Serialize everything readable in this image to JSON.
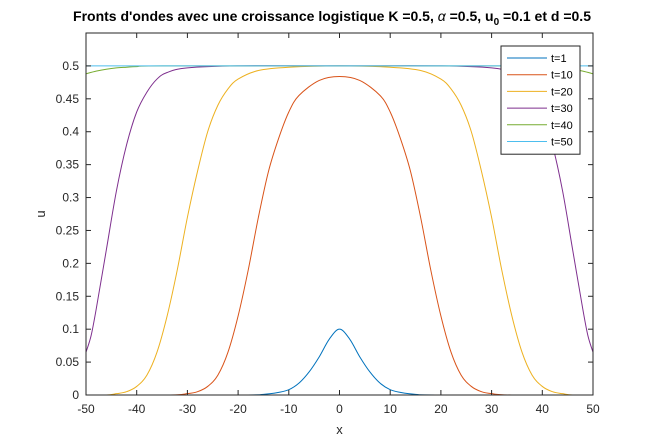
{
  "chart_data": {
    "type": "line",
    "title": {
      "prefix": "Fronts d'ondes avec une croissance logistique K =0.5, ",
      "alpha_symbol": "α",
      "alpha_part": " =0.5, u",
      "subscript": "0",
      "suffix": " =0.1 et d =0.5"
    },
    "xlabel": "x",
    "ylabel": "u",
    "xlim": [
      -50,
      50
    ],
    "ylim": [
      0,
      0.55
    ],
    "xticks": [
      -50,
      -40,
      -30,
      -20,
      -10,
      0,
      10,
      20,
      30,
      40,
      50
    ],
    "xtick_labels": [
      "-50",
      "-40",
      "-30",
      "-20",
      "-10",
      "0",
      "10",
      "20",
      "30",
      "40",
      "50"
    ],
    "yticks": [
      0,
      0.05,
      0.1,
      0.15,
      0.2,
      0.25,
      0.3,
      0.35,
      0.4,
      0.45,
      0.5
    ],
    "ytick_labels": [
      "0",
      "0.05",
      "0.1",
      "0.15",
      "0.2",
      "0.25",
      "0.3",
      "0.35",
      "0.4",
      "0.45",
      "0.5"
    ],
    "grid": false,
    "legend_position": "top-right",
    "series": [
      {
        "name": "t=1",
        "color": "#0072BD",
        "x": [
          -50,
          -20,
          -15,
          -12,
          -10,
          -8,
          -6,
          -4,
          -2,
          0,
          2,
          4,
          6,
          8,
          10,
          12,
          15,
          20,
          50
        ],
        "y": [
          0,
          0,
          0.001,
          0.004,
          0.008,
          0.018,
          0.035,
          0.058,
          0.085,
          0.1,
          0.085,
          0.058,
          0.035,
          0.018,
          0.008,
          0.004,
          0.001,
          0,
          0
        ]
      },
      {
        "name": "t=10",
        "color": "#D95319",
        "x": [
          -50,
          -34,
          -30,
          -28,
          -26,
          -24,
          -22,
          -20,
          -18,
          -16,
          -14,
          -12,
          -10,
          -8,
          -4,
          0,
          4,
          8,
          10,
          12,
          14,
          16,
          18,
          20,
          22,
          24,
          26,
          28,
          30,
          34,
          50
        ],
        "y": [
          0,
          0,
          0.002,
          0.005,
          0.013,
          0.03,
          0.065,
          0.12,
          0.19,
          0.27,
          0.34,
          0.39,
          0.43,
          0.455,
          0.478,
          0.484,
          0.478,
          0.455,
          0.43,
          0.39,
          0.34,
          0.27,
          0.19,
          0.12,
          0.065,
          0.03,
          0.013,
          0.005,
          0.002,
          0,
          0
        ]
      },
      {
        "name": "t=20",
        "color": "#EDB120",
        "x": [
          -50,
          -46,
          -44,
          -42,
          -40,
          -38,
          -36,
          -34,
          -32,
          -30,
          -28,
          -26,
          -24,
          -22,
          -20,
          -16,
          -10,
          0,
          10,
          16,
          20,
          22,
          24,
          26,
          28,
          30,
          32,
          34,
          36,
          38,
          40,
          42,
          44,
          46,
          50
        ],
        "y": [
          0,
          0,
          0.002,
          0.005,
          0.013,
          0.03,
          0.065,
          0.12,
          0.19,
          0.27,
          0.34,
          0.4,
          0.44,
          0.465,
          0.48,
          0.493,
          0.498,
          0.5,
          0.498,
          0.493,
          0.48,
          0.465,
          0.44,
          0.4,
          0.34,
          0.27,
          0.19,
          0.12,
          0.065,
          0.03,
          0.013,
          0.005,
          0.002,
          0,
          0
        ]
      },
      {
        "name": "t=30",
        "color": "#7E2F8E",
        "x": [
          -50,
          -49,
          -48,
          -46,
          -44,
          -42,
          -40,
          -38,
          -36,
          -34,
          -30,
          -20,
          0,
          20,
          30,
          34,
          36,
          38,
          40,
          42,
          44,
          46,
          48,
          49,
          50
        ],
        "y": [
          0.065,
          0.09,
          0.13,
          0.22,
          0.31,
          0.38,
          0.43,
          0.46,
          0.48,
          0.49,
          0.497,
          0.5,
          0.5,
          0.5,
          0.497,
          0.49,
          0.48,
          0.46,
          0.43,
          0.38,
          0.31,
          0.22,
          0.13,
          0.09,
          0.065
        ]
      },
      {
        "name": "t=40",
        "color": "#77AC30",
        "x": [
          -50,
          -48,
          -46,
          -44,
          -42,
          -40,
          -35,
          0,
          35,
          40,
          42,
          44,
          46,
          48,
          50
        ],
        "y": [
          0.488,
          0.492,
          0.495,
          0.497,
          0.498,
          0.499,
          0.5,
          0.5,
          0.5,
          0.499,
          0.498,
          0.497,
          0.495,
          0.492,
          0.488
        ]
      },
      {
        "name": "t=50",
        "color": "#4DBEEE",
        "x": [
          -50,
          0,
          50
        ],
        "y": [
          0.5,
          0.5,
          0.5
        ]
      }
    ]
  }
}
